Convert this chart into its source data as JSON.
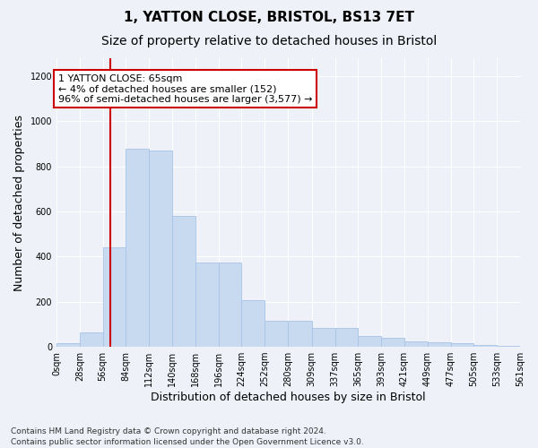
{
  "title_line1": "1, YATTON CLOSE, BRISTOL, BS13 7ET",
  "title_line2": "Size of property relative to detached houses in Bristol",
  "xlabel": "Distribution of detached houses by size in Bristol",
  "ylabel": "Number of detached properties",
  "bar_values": [
    15,
    65,
    440,
    880,
    870,
    580,
    375,
    375,
    205,
    115,
    115,
    85,
    85,
    50,
    40,
    25,
    20,
    18,
    10,
    5
  ],
  "bin_edges": [
    0,
    28,
    56,
    84,
    112,
    140,
    168,
    196,
    224,
    252,
    280,
    309,
    337,
    365,
    393,
    421,
    449,
    477,
    505,
    533,
    561
  ],
  "tick_labels": [
    "0sqm",
    "28sqm",
    "56sqm",
    "84sqm",
    "112sqm",
    "140sqm",
    "168sqm",
    "196sqm",
    "224sqm",
    "252sqm",
    "280sqm",
    "309sqm",
    "337sqm",
    "365sqm",
    "393sqm",
    "421sqm",
    "449sqm",
    "477sqm",
    "505sqm",
    "533sqm",
    "561sqm"
  ],
  "bar_color": "#c8daf0",
  "bar_edgecolor": "#a8c4e8",
  "vline_x": 65,
  "vline_color": "#cc0000",
  "annotation_text": "1 YATTON CLOSE: 65sqm\n← 4% of detached houses are smaller (152)\n96% of semi-detached houses are larger (3,577) →",
  "annotation_box_color": "#ffffff",
  "annotation_box_edgecolor": "#cc0000",
  "ylim": [
    0,
    1280
  ],
  "yticks": [
    0,
    200,
    400,
    600,
    800,
    1000,
    1200
  ],
  "background_color": "#eef2f8",
  "footer_text": "Contains HM Land Registry data © Crown copyright and database right 2024.\nContains public sector information licensed under the Open Government Licence v3.0.",
  "grid_color": "#ffffff",
  "title_fontsize": 11,
  "subtitle_fontsize": 10,
  "axis_label_fontsize": 9,
  "tick_fontsize": 7,
  "footer_fontsize": 6.5,
  "annotation_fontsize": 8
}
